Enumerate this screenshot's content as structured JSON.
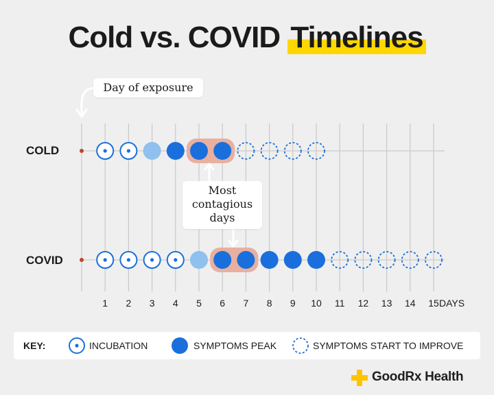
{
  "title": {
    "main": "Cold vs. COVID",
    "highlight": "Timelines"
  },
  "callouts": {
    "exposure": "Day of exposure",
    "contagious": [
      "Most",
      "contagious",
      "days"
    ]
  },
  "rows": [
    {
      "label": "COLD",
      "exposure_day": 0,
      "days": [
        {
          "day": 1,
          "state": "incubation"
        },
        {
          "day": 2,
          "state": "incubation"
        },
        {
          "day": 3,
          "state": "onset"
        },
        {
          "day": 4,
          "state": "peak"
        },
        {
          "day": 5,
          "state": "peak"
        },
        {
          "day": 6,
          "state": "peak"
        },
        {
          "day": 7,
          "state": "improve"
        },
        {
          "day": 8,
          "state": "improve"
        },
        {
          "day": 9,
          "state": "improve"
        },
        {
          "day": 10,
          "state": "improve"
        }
      ],
      "contagious_days": [
        5,
        6
      ]
    },
    {
      "label": "COVID",
      "exposure_day": 0,
      "days": [
        {
          "day": 1,
          "state": "incubation"
        },
        {
          "day": 2,
          "state": "incubation"
        },
        {
          "day": 3,
          "state": "incubation"
        },
        {
          "day": 4,
          "state": "incubation"
        },
        {
          "day": 5,
          "state": "onset"
        },
        {
          "day": 6,
          "state": "peak"
        },
        {
          "day": 7,
          "state": "peak"
        },
        {
          "day": 8,
          "state": "peak"
        },
        {
          "day": 9,
          "state": "peak"
        },
        {
          "day": 10,
          "state": "peak"
        },
        {
          "day": 11,
          "state": "improve"
        },
        {
          "day": 12,
          "state": "improve"
        },
        {
          "day": 13,
          "state": "improve"
        },
        {
          "day": 14,
          "state": "improve"
        },
        {
          "day": 15,
          "state": "improve"
        }
      ],
      "contagious_days": [
        6,
        7
      ]
    }
  ],
  "axis": {
    "day_labels": [
      "1",
      "2",
      "3",
      "4",
      "5",
      "6",
      "7",
      "8",
      "9",
      "10",
      "11",
      "12",
      "13",
      "14",
      "15"
    ],
    "unit": "DAYS"
  },
  "key": {
    "label": "KEY:",
    "incubation": "INCUBATION",
    "peak": "SYMPTOMS PEAK",
    "improve": "SYMPTOMS START TO IMPROVE"
  },
  "brand": "GoodRx Health",
  "colors": {
    "background": "#efefef",
    "blue": "#1a6fdc",
    "light_blue": "#8fc0ee",
    "contagious_band": "#e8b0a0",
    "exposure_dot": "#c0442a",
    "highlight": "#ffd700",
    "brand_yellow": "#ffc400"
  },
  "icons": {
    "exposure_arrow": "curved-arrow-down-icon",
    "contagious_arrows": "arrow-up-down-icon",
    "brand_logo": "plus-icon"
  }
}
